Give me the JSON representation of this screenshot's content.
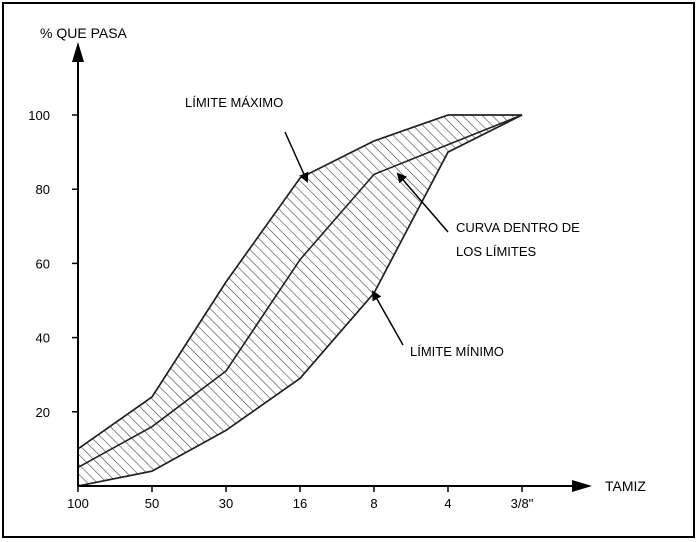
{
  "chart_data": {
    "type": "area",
    "title": "",
    "ylabel": "% QUE PASA",
    "xlabel": "TAMIZ",
    "x_ticks": [
      "100",
      "50",
      "30",
      "16",
      "8",
      "4",
      "3/8\""
    ],
    "y_ticks": [
      20,
      40,
      60,
      80,
      100
    ],
    "ylim": [
      0,
      100
    ],
    "grid": false,
    "colors": {
      "axis": "#000000",
      "hatch": "#444444",
      "curve": "#222222"
    },
    "series": [
      {
        "name": "LÍMITE MÁXIMO",
        "x": [
          "100",
          "50",
          "30",
          "16",
          "8",
          "4",
          "3/8\""
        ],
        "values": [
          10,
          24,
          55,
          83,
          93,
          100,
          100
        ]
      },
      {
        "name": "CURVA DENTRO DE LOS LÍMITES",
        "x": [
          "100",
          "50",
          "30",
          "16",
          "8",
          "4",
          "3/8\""
        ],
        "values": [
          5,
          16,
          31,
          61,
          84,
          92,
          100
        ]
      },
      {
        "name": "LÍMITE MÍNIMO",
        "x": [
          "100",
          "50",
          "30",
          "16",
          "8",
          "4",
          "3/8\""
        ],
        "values": [
          0,
          4,
          15,
          29,
          52,
          90,
          100
        ]
      }
    ],
    "annotations": {
      "max_label": "LÍMITE MÁXIMO",
      "curve_label_line1": "CURVA DENTRO DE",
      "curve_label_line2": "LOS LÍMITES",
      "min_label": "LÍMITE MÍNIMO"
    }
  }
}
